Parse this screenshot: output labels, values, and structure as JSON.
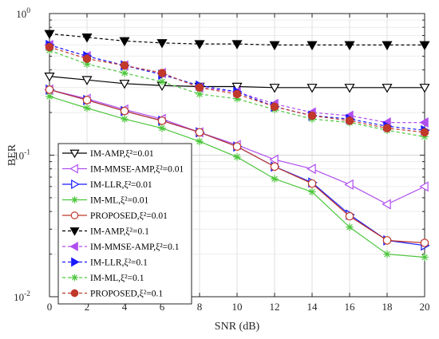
{
  "chart_data": {
    "type": "line",
    "xlabel": "SNR (dB)",
    "ylabel": "BER",
    "x": [
      0,
      2,
      4,
      6,
      8,
      10,
      12,
      14,
      16,
      18,
      20
    ],
    "xlim": [
      0,
      20
    ],
    "ylim": [
      0.01,
      1
    ],
    "yscale": "log",
    "x_ticks": [
      "0",
      "2",
      "4",
      "6",
      "8",
      "10",
      "12",
      "14",
      "16",
      "18",
      "20"
    ],
    "y_ticks": [
      {
        "base": "10",
        "exp": "-2",
        "value": 0.01
      },
      {
        "base": "10",
        "exp": "-1",
        "value": 0.1
      },
      {
        "base": "10",
        "exp": "0",
        "value": 1
      }
    ],
    "grid": true,
    "legend_position": "lower-left",
    "series": [
      {
        "name": "IM-AMP,ξ²=0.01",
        "color": "#000000",
        "dash": "solid",
        "marker": "triangle-down-open",
        "values": [
          0.36,
          0.34,
          0.32,
          0.31,
          0.305,
          0.305,
          0.3,
          0.3,
          0.3,
          0.3,
          0.3
        ]
      },
      {
        "name": "IM-MMSE-AMP,ξ²=0.01",
        "color": "#b04ff0",
        "dash": "solid",
        "marker": "triangle-left-open",
        "values": [
          0.29,
          0.25,
          0.21,
          0.18,
          0.145,
          0.118,
          0.093,
          0.08,
          0.062,
          0.045,
          0.06
        ]
      },
      {
        "name": "IM-LLR,ξ²=0.01",
        "color": "#1a1aff",
        "dash": "solid",
        "marker": "triangle-right-open",
        "values": [
          0.29,
          0.245,
          0.205,
          0.175,
          0.145,
          0.115,
          0.083,
          0.064,
          0.038,
          0.025,
          0.023
        ]
      },
      {
        "name": "IM-ML,ξ²=0.01",
        "color": "#4cc63c",
        "dash": "solid",
        "marker": "asterisk",
        "values": [
          0.26,
          0.215,
          0.18,
          0.155,
          0.125,
          0.097,
          0.068,
          0.055,
          0.031,
          0.02,
          0.019
        ]
      },
      {
        "name": "PROPOSED,ξ²=0.01",
        "color": "#c0392b",
        "dash": "solid",
        "marker": "circle-open",
        "values": [
          0.29,
          0.245,
          0.205,
          0.175,
          0.145,
          0.115,
          0.083,
          0.063,
          0.037,
          0.025,
          0.024
        ]
      },
      {
        "name": "IM-AMP,ξ²=0.1",
        "color": "#000000",
        "dash": "dashed",
        "marker": "triangle-down-filled",
        "values": [
          0.72,
          0.68,
          0.64,
          0.62,
          0.61,
          0.61,
          0.6,
          0.6,
          0.6,
          0.6,
          0.6
        ]
      },
      {
        "name": "IM-MMSE-AMP,ξ²=0.1",
        "color": "#b04ff0",
        "dash": "dashed",
        "marker": "triangle-left-filled",
        "values": [
          0.6,
          0.5,
          0.43,
          0.38,
          0.3,
          0.28,
          0.23,
          0.2,
          0.19,
          0.17,
          0.17
        ]
      },
      {
        "name": "IM-LLR,ξ²=0.1",
        "color": "#1a1aff",
        "dash": "dashed",
        "marker": "triangle-right-filled",
        "values": [
          0.6,
          0.5,
          0.43,
          0.37,
          0.31,
          0.28,
          0.22,
          0.19,
          0.18,
          0.16,
          0.15
        ]
      },
      {
        "name": "IM-ML,ξ²=0.1",
        "color": "#4cc63c",
        "dash": "dashed",
        "marker": "asterisk",
        "values": [
          0.55,
          0.44,
          0.38,
          0.33,
          0.27,
          0.25,
          0.21,
          0.18,
          0.17,
          0.15,
          0.135
        ]
      },
      {
        "name": "PROPOSED,ξ²=0.1",
        "color": "#c0392b",
        "dash": "dashed",
        "marker": "circle-filled",
        "values": [
          0.58,
          0.48,
          0.43,
          0.38,
          0.3,
          0.27,
          0.22,
          0.19,
          0.175,
          0.155,
          0.145
        ]
      }
    ]
  }
}
